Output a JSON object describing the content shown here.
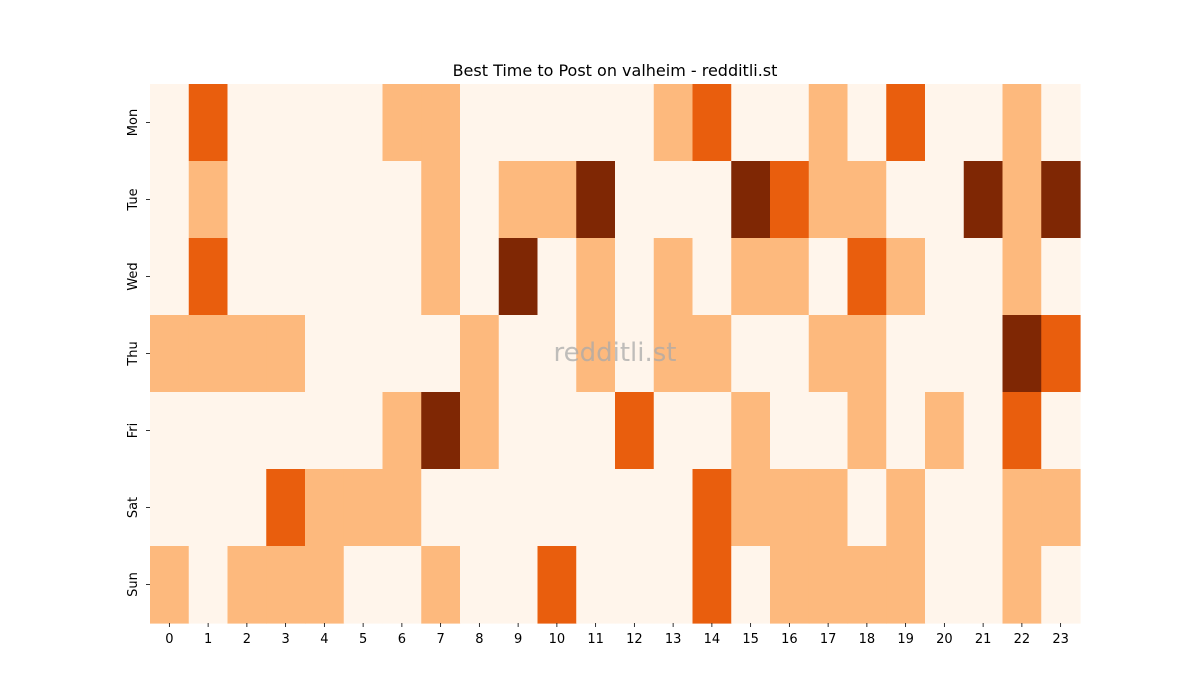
{
  "chart_data": {
    "type": "heatmap",
    "title": "Best Time to Post on valheim - redditli.st",
    "watermark": "redditli.st",
    "x_labels": [
      "0",
      "1",
      "2",
      "3",
      "4",
      "5",
      "6",
      "7",
      "8",
      "9",
      "10",
      "11",
      "12",
      "13",
      "14",
      "15",
      "16",
      "17",
      "18",
      "19",
      "20",
      "21",
      "22",
      "23"
    ],
    "y_labels": [
      "Mon",
      "Tue",
      "Wed",
      "Thu",
      "Fri",
      "Sat",
      "Sun"
    ],
    "values": [
      [
        0,
        2,
        0,
        0,
        0,
        0,
        1,
        1,
        0,
        0,
        0,
        0,
        0,
        1,
        2,
        0,
        0,
        1,
        0,
        2,
        0,
        0,
        1,
        0
      ],
      [
        0,
        1,
        0,
        0,
        0,
        0,
        0,
        1,
        0,
        1,
        1,
        3,
        0,
        0,
        0,
        3,
        2,
        1,
        1,
        0,
        0,
        3,
        1,
        3
      ],
      [
        0,
        2,
        0,
        0,
        0,
        0,
        0,
        1,
        0,
        3,
        0,
        1,
        0,
        1,
        0,
        1,
        1,
        0,
        2,
        1,
        0,
        0,
        1,
        0
      ],
      [
        1,
        1,
        1,
        1,
        0,
        0,
        0,
        0,
        1,
        0,
        0,
        1,
        0,
        1,
        1,
        0,
        0,
        1,
        1,
        0,
        0,
        0,
        3,
        2
      ],
      [
        0,
        0,
        0,
        0,
        0,
        0,
        1,
        3,
        1,
        0,
        0,
        0,
        2,
        0,
        0,
        1,
        0,
        0,
        1,
        0,
        1,
        0,
        2,
        0
      ],
      [
        0,
        0,
        0,
        2,
        1,
        1,
        1,
        0,
        0,
        0,
        0,
        0,
        0,
        0,
        2,
        1,
        1,
        1,
        0,
        1,
        0,
        0,
        1,
        1
      ],
      [
        1,
        0,
        1,
        1,
        1,
        0,
        0,
        1,
        0,
        0,
        2,
        0,
        0,
        0,
        2,
        0,
        1,
        1,
        1,
        1,
        0,
        0,
        1,
        0
      ]
    ],
    "colors": [
      "#fff5eb",
      "#fdb97d",
      "#e95e0d",
      "#7f2704"
    ],
    "colorbar": false,
    "grid": false
  }
}
